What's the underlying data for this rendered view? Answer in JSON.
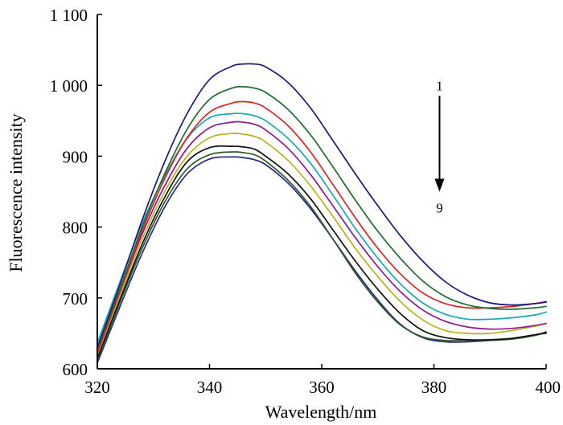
{
  "chart_data": {
    "type": "line",
    "title": "",
    "xlabel": "Wavelength/nm",
    "ylabel": "Fluorescence intensity",
    "xlim": [
      320,
      400
    ],
    "ylim": [
      600,
      1100
    ],
    "xticks": [
      320,
      340,
      360,
      380,
      400
    ],
    "xtick_labels": [
      "320",
      "340",
      "360",
      "380",
      "400"
    ],
    "yticks": [
      600,
      700,
      800,
      900,
      1000,
      1100
    ],
    "ytick_labels": [
      "600",
      "700",
      "800",
      "900",
      "1 000",
      "1 100"
    ],
    "grid": false,
    "legend": "none",
    "annotations": {
      "arrow_top_label": "1",
      "arrow_bottom_label": "9",
      "arrow_x": 381,
      "arrow_y_from": 985,
      "arrow_y_to": 850
    },
    "x": [
      320,
      324,
      328,
      332,
      336,
      340,
      344,
      346,
      348,
      350,
      354,
      358,
      362,
      366,
      370,
      374,
      378,
      382,
      386,
      390,
      394,
      398,
      400
    ],
    "series": [
      {
        "color": "#1a1a7a",
        "values": [
          630,
          718,
          810,
          892,
          960,
          1008,
          1027,
          1030,
          1030,
          1026,
          1004,
          968,
          922,
          875,
          830,
          788,
          752,
          723,
          704,
          693,
          690,
          692,
          694
        ]
      },
      {
        "color": "#1f6b2e",
        "values": [
          628,
          712,
          800,
          875,
          938,
          980,
          996,
          998,
          996,
          990,
          966,
          930,
          885,
          838,
          794,
          756,
          724,
          702,
          690,
          685,
          684,
          686,
          688
        ]
      },
      {
        "color": "#e0201f",
        "values": [
          622,
          708,
          795,
          868,
          926,
          962,
          975,
          977,
          975,
          968,
          943,
          906,
          860,
          813,
          770,
          734,
          707,
          692,
          686,
          686,
          688,
          692,
          695
        ]
      },
      {
        "color": "#1ba7b0",
        "values": [
          636,
          722,
          805,
          872,
          925,
          954,
          960,
          960,
          957,
          950,
          925,
          890,
          845,
          798,
          756,
          720,
          693,
          677,
          670,
          670,
          672,
          676,
          680
        ]
      },
      {
        "color": "#8c1a8c",
        "values": [
          625,
          708,
          790,
          858,
          911,
          940,
          948,
          948,
          945,
          937,
          911,
          874,
          830,
          785,
          744,
          709,
          683,
          667,
          659,
          656,
          657,
          661,
          664
        ]
      },
      {
        "color": "#b9b21a",
        "values": [
          620,
          703,
          783,
          850,
          900,
          926,
          932,
          931,
          928,
          920,
          894,
          858,
          815,
          770,
          730,
          695,
          669,
          654,
          650,
          650,
          654,
          660,
          664
        ]
      },
      {
        "color": "#111111",
        "values": [
          615,
          697,
          776,
          842,
          892,
          912,
          914,
          913,
          910,
          900,
          875,
          840,
          796,
          752,
          712,
          678,
          654,
          644,
          641,
          641,
          643,
          648,
          651
        ]
      },
      {
        "color": "#2e5a2a",
        "values": [
          612,
          693,
          770,
          835,
          882,
          902,
          906,
          905,
          902,
          893,
          866,
          829,
          783,
          735,
          694,
          662,
          645,
          640,
          640,
          640,
          642,
          647,
          652
        ]
      },
      {
        "color": "#2a2a8a",
        "values": [
          608,
          687,
          763,
          828,
          875,
          896,
          899,
          898,
          895,
          888,
          862,
          826,
          783,
          738,
          697,
          663,
          644,
          638,
          638,
          640,
          643,
          648,
          650
        ]
      }
    ]
  }
}
